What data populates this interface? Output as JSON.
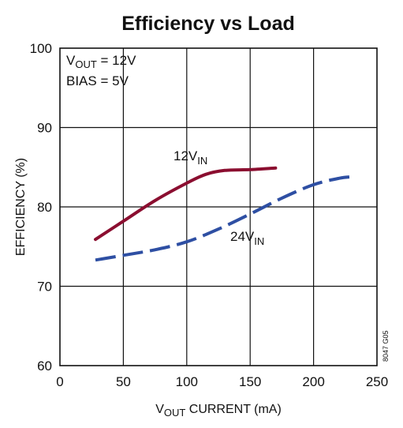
{
  "chart_data": {
    "type": "line",
    "title": "Efficiency vs Load",
    "xlabel": {
      "main": "V",
      "sub": "OUT",
      "rest": " CURRENT (mA)"
    },
    "ylabel": "EFFICIENCY (%)",
    "xlim": [
      0,
      250
    ],
    "ylim": [
      60,
      100
    ],
    "xticks": [
      "0",
      "50",
      "100",
      "150",
      "200",
      "250"
    ],
    "yticks": [
      "60",
      "70",
      "80",
      "90",
      "100"
    ],
    "grid": true,
    "annotations": {
      "vout": {
        "main": "V",
        "sub": "OUT",
        "rest": " = 12V"
      },
      "bias": "BIAS = 5V"
    },
    "series": [
      {
        "name": "12VIN",
        "label": {
          "main": "12V",
          "sub": "IN"
        },
        "color": "#8b0e30",
        "style": "solid",
        "x": [
          28,
          50,
          75,
          100,
          115,
          130,
          150,
          170
        ],
        "y": [
          75.9,
          78.2,
          80.8,
          83.0,
          84.1,
          84.6,
          84.7,
          84.9
        ]
      },
      {
        "name": "24VIN",
        "label": {
          "main": "24V",
          "sub": "IN"
        },
        "color": "#2e4fa3",
        "style": "dashed",
        "x": [
          28,
          50,
          75,
          100,
          125,
          150,
          175,
          200,
          220,
          232
        ],
        "y": [
          73.3,
          73.9,
          74.6,
          75.6,
          77.2,
          79.1,
          81.1,
          82.8,
          83.6,
          83.8
        ]
      }
    ],
    "figure_code": "8047 G05"
  }
}
